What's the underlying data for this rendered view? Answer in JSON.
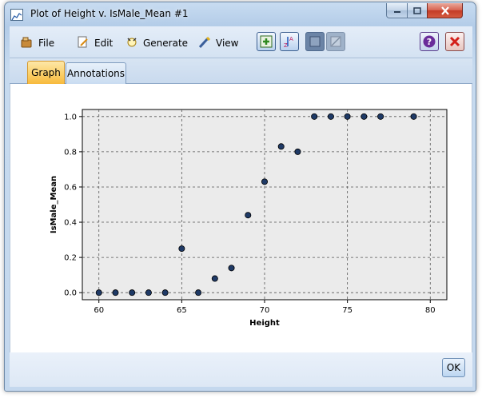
{
  "window": {
    "title": "Plot of Height v. IsMale_Mean #1"
  },
  "menu": {
    "items": [
      {
        "label": "File",
        "icon": "file-icon"
      },
      {
        "label": "Edit",
        "icon": "edit-icon"
      },
      {
        "label": "Generate",
        "icon": "generate-icon"
      },
      {
        "label": "View",
        "icon": "view-icon"
      }
    ]
  },
  "toolbar": {
    "buttons": [
      "add-node-icon",
      "sort-az-icon",
      "frame-icon",
      "diagonal-icon",
      "help-icon",
      "close-red-icon"
    ]
  },
  "tabs": [
    {
      "label": "Graph",
      "active": true
    },
    {
      "label": "Annotations",
      "active": false
    }
  ],
  "footer": {
    "ok_label": "OK"
  },
  "colors": {
    "point_fill": "#1f3a66",
    "plot_bg": "#ebebeb",
    "active_tab": "#fbd06a"
  },
  "chart_data": {
    "type": "scatter",
    "title": "",
    "xlabel": "Height",
    "ylabel": "IsMale_Mean",
    "xlim": [
      59,
      81
    ],
    "ylim": [
      -0.04,
      1.04
    ],
    "xticks": [
      60,
      65,
      70,
      75,
      80
    ],
    "yticks": [
      "0.0",
      "0.2",
      "0.4",
      "0.6",
      "0.8",
      "1.0"
    ],
    "grid": true,
    "points": [
      {
        "x": 60,
        "y": 0.0
      },
      {
        "x": 61,
        "y": 0.0
      },
      {
        "x": 62,
        "y": 0.0
      },
      {
        "x": 63,
        "y": 0.0
      },
      {
        "x": 64,
        "y": 0.0
      },
      {
        "x": 65,
        "y": 0.25
      },
      {
        "x": 66,
        "y": 0.0
      },
      {
        "x": 67,
        "y": 0.08
      },
      {
        "x": 68,
        "y": 0.14
      },
      {
        "x": 69,
        "y": 0.44
      },
      {
        "x": 70,
        "y": 0.63
      },
      {
        "x": 71,
        "y": 0.83
      },
      {
        "x": 72,
        "y": 0.8
      },
      {
        "x": 73,
        "y": 1.0
      },
      {
        "x": 74,
        "y": 1.0
      },
      {
        "x": 75,
        "y": 1.0
      },
      {
        "x": 76,
        "y": 1.0
      },
      {
        "x": 77,
        "y": 1.0
      },
      {
        "x": 79,
        "y": 1.0
      }
    ]
  }
}
